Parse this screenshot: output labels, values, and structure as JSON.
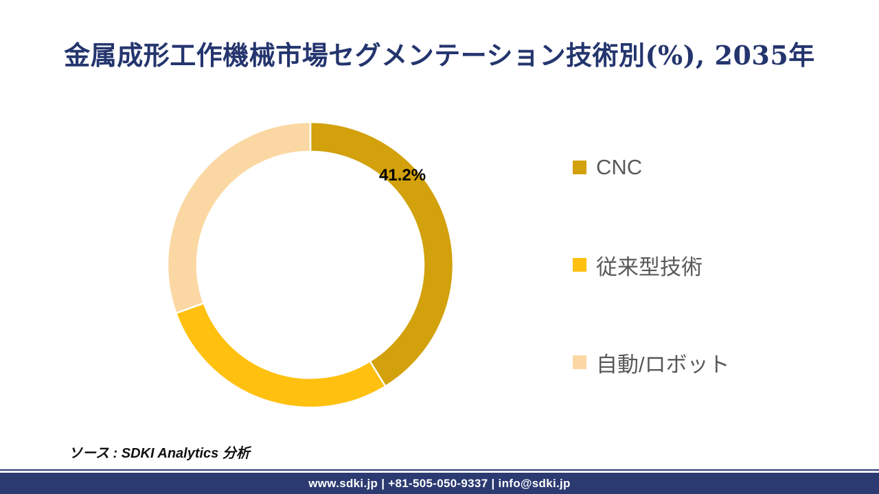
{
  "page": {
    "title": "金属成形工作機械市場セグメンテーション技術別(%), 2035年",
    "source_note": "ソース : SDKI Analytics 分析",
    "footer_text": "www.sdki.jp | +81-505-050-9337 | info@sdki.jp",
    "colors": {
      "title": "#24356E",
      "footer_bar": "#2B3A70",
      "legend_text": "#595959",
      "background": "#FFFFFF"
    }
  },
  "chart_data": {
    "type": "pie",
    "subtype": "donut",
    "title": "金属成形工作機械市場セグメンテーション技術別(%), 2035年",
    "unit": "%",
    "year": "2035年",
    "categories": [
      "CNC",
      "従来型技術",
      "自動/ロボット"
    ],
    "values": [
      41.2,
      28.3,
      30.5
    ],
    "labels": [
      "41.2%",
      "",
      ""
    ],
    "colors": [
      "#D2A10B",
      "#FFC010",
      "#FBD8A3"
    ],
    "start_angle_deg": 0,
    "direction": "clockwise",
    "legend_position": "right",
    "hole": true,
    "segment_gap_color": "#FFFFFF"
  }
}
